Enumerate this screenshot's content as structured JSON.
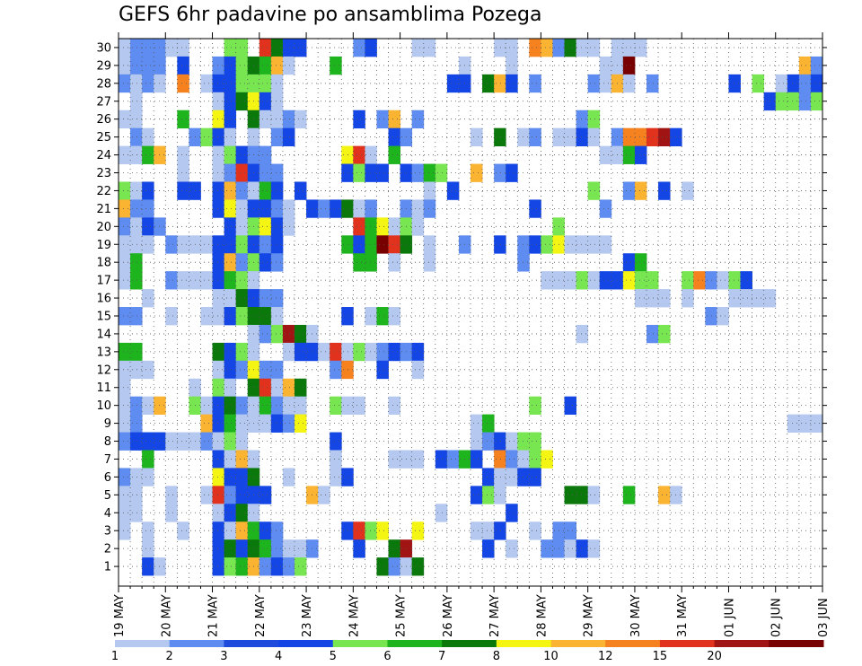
{
  "title": "GEFS 6hr padavine po ansamblima Pozega",
  "chart_data": {
    "type": "heatmap",
    "title": "GEFS 6hr padavine po ansamblima Pozega",
    "x_ticks": [
      "19 MAY",
      "20 MAY",
      "21 MAY",
      "22 MAY",
      "23 MAY",
      "24 MAY",
      "25 MAY",
      "26 MAY",
      "27 MAY",
      "28 MAY",
      "29 MAY",
      "30 MAY",
      "31 MAY",
      "01 JUN",
      "02 JUN",
      "03 JUN"
    ],
    "y_ticks": [
      1,
      2,
      3,
      4,
      5,
      6,
      7,
      8,
      9,
      10,
      11,
      12,
      13,
      14,
      15,
      16,
      17,
      18,
      19,
      20,
      21,
      22,
      23,
      24,
      25,
      26,
      27,
      28,
      29,
      30
    ],
    "grid": true,
    "colorbar": {
      "labels": [
        "1",
        "2",
        "3",
        "4",
        "5",
        "6",
        "7",
        "8",
        "10",
        "12",
        "15",
        "20"
      ],
      "colors": [
        "#b4c8f0",
        "#5f8cf0",
        "#1e4bdc",
        "#1446e6",
        "#78e650",
        "#1eb41e",
        "#0a780a",
        "#f5f514",
        "#fab432",
        "#f5821e",
        "#e1321e",
        "#a01414",
        "#780000"
      ]
    },
    "palette": {
      "L": "#b4c8f0",
      "M": "#5f8cf0",
      "B": "#1446e6",
      "g": "#78e650",
      "G": "#1eb41e",
      "D": "#0a780a",
      "Y": "#f5f514",
      "o": "#fab432",
      "O": "#f5821e",
      "r": "#e1321e",
      "R": "#a01414",
      "K": "#780000"
    },
    "data_note_rows": "rows listed from member 30 down to member 1; 60 columns = 6-hour steps from 19 MAY to 03 JUN",
    "rows": [
      {
        "member": 30,
        "cells": "LMMMLL...gg.rDBB....MB...LL.....LL.OoMDLL.LLL.............."
      },
      {
        "member": 29,
        "cells": "LMMM.B..MBgDGoL...G..........L...L.......LLK..............oMOrO"
      },
      {
        "member": 28,
        "cells": "MLML.O.LBBgggL..............BB.DoB.M....MLoL.M......B.g.LBMBG"
      },
      {
        "member": 27,
        "cells": ".L......LBDYBL.........................................BggMg.M..."
      },
      {
        "member": 26,
        "cells": "LL...G..YB.DLLML....B.Mo.M.............Mg...................."
      },
      {
        "member": 25,
        "cells": ".ML...MgBL.L.MB........BM.....L.D.LM.LLBL.MOOrRB............"
      },
      {
        "member": 24,
        "cells": "LLGo.L..LgBMM......YrL.G.................LLGB..............."
      },
      {
        "member": 23,
        "cells": ".....L..LMrBMM.....BgBB.BMGg..o.MB........................."
      },
      {
        "member": 22,
        "cells": "gLB..BB.BoMLGB.B..........L.B...........g..Mo.B.L.........."
      },
      {
        "member": 21,
        "cells": "oMM.....BYLBBML.BMBDLM..MLM........B.....M....."
      },
      {
        "member": 20,
        "cells": "MLBM.....BLgYBL.....rGYLgL...........g....................."
      },
      {
        "member": 19,
        "cells": "LLL.MLLLBBgBMB.....GBGKrD.L..M..B.MBgYLLLL..............."
      },
      {
        "member": 18,
        "cells": "LG......BoMgBM......GG.L..L.......M........BG..............."
      },
      {
        "member": 17,
        "cells": "LG..MLLLBGgL........................LLLgLBBYgg..gOMLgB......"
      },
      {
        "member": 16,
        "cells": "..L.....LLDBMM..............................LLL.L...LLLL..."
      },
      {
        "member": 15,
        "cells": "MM..L..LLBgDDL.....B.LGL..........................ML........."
      },
      {
        "member": 14,
        "cells": "...........LMgRDL......................L.....Mg.........."
      },
      {
        "member": 13,
        "cells": "GG......DBgL..LBBLrLgLMBMB..................................."
      },
      {
        "member": 12,
        "cells": "LLL.....LBMYMM....MO..B..L..................................."
      },
      {
        "member": 11,
        "cells": "L.....L.gL.DrLoD..............................................."
      },
      {
        "member": 10,
        "cells": "LMLo..gLBDMLGMLL..gLL..L...........g..B.....................B"
      },
      {
        "member": 9,
        "cells": "LM.....oBGLLLBMY..............LG.........................LLL"
      },
      {
        "member": 8,
        "cells": "MBBBLLLMLgL.......B...........LMBLgg........................."
      },
      {
        "member": 7,
        "cells": "..G.....BLoL......L....LLL.BMGB.OMLgY......................"
      },
      {
        "member": 6,
        "cells": "MLL.....YBBD..L...LB...........BLLBB......................."
      },
      {
        "member": 5,
        "cells": "LL..L..LrMBBB...oL............BgL.....DDL..G..oL............"
      },
      {
        "member": 4,
        "cells": "LL..L...LBDL...............L.....B...........................LB"
      },
      {
        "member": 3,
        "cells": "L.L..L..BLoGBM.....BrgY..Y....LLB..L.MM.......................BL"
      },
      {
        "member": 2,
        "cells": "..L.....BDBDGMLLM...B..DR......B.L..MMLBL....................."
      },
      {
        "member": 1,
        "cells": "..BL....BgGoMBMg......DMLD......................................BGM.."
      }
    ]
  }
}
